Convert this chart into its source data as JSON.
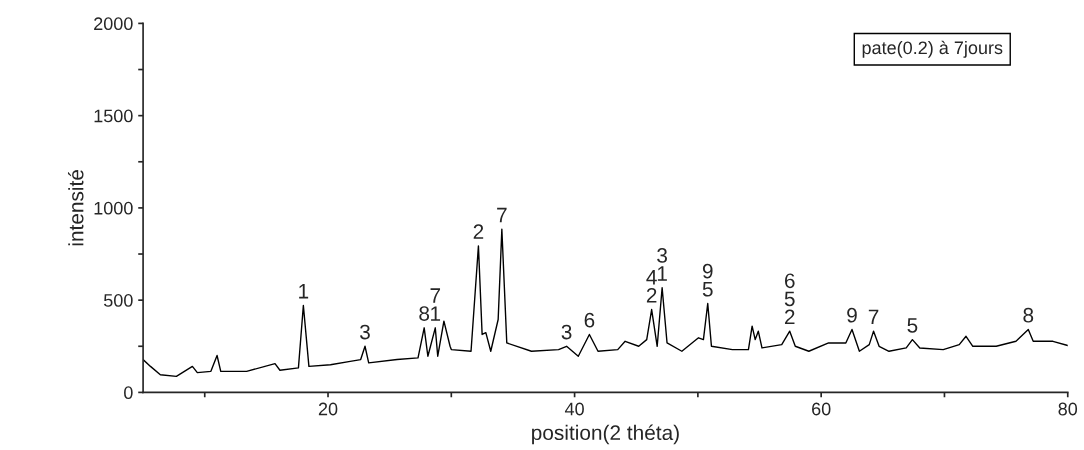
{
  "chart_data": {
    "type": "line",
    "xlabel": "position(2 théta)",
    "ylabel": "intensité",
    "xlim": [
      5,
      80
    ],
    "ylim": [
      0,
      2000
    ],
    "xticks": [
      {
        "value": 10,
        "label": null
      },
      20,
      {
        "value": 30,
        "label": null
      },
      40,
      {
        "value": 50,
        "label": null
      },
      60,
      {
        "value": 70,
        "label": null
      },
      80
    ],
    "yticks": [
      0,
      {
        "value": 250,
        "label": null
      },
      500,
      {
        "value": 750,
        "label": null
      },
      1000,
      {
        "value": 1250,
        "label": null
      },
      1500,
      {
        "value": 1750,
        "label": null
      },
      2000
    ],
    "grid": false,
    "marker": "none",
    "line_style": "solid",
    "series": [
      {
        "color": "#000000",
        "x": [
          5.0,
          5.6,
          6.4,
          7.7,
          9.0,
          9.4,
          10.5,
          11.0,
          11.3,
          13.4,
          15.7,
          16.1,
          17.6,
          18.0,
          18.45,
          20.2,
          21.8,
          22.65,
          23.0,
          23.3,
          25.6,
          27.3,
          27.8,
          28.1,
          28.7,
          28.9,
          29.4,
          29.9,
          30.0,
          31.6,
          32.2,
          32.5,
          32.8,
          33.2,
          33.8,
          34.1,
          34.5,
          36.5,
          38.7,
          39.35,
          40.3,
          41.2,
          41.9,
          43.5,
          44.1,
          45.2,
          45.85,
          46.25,
          46.7,
          47.1,
          47.5,
          48.7,
          50.05,
          50.45,
          50.8,
          51.1,
          52.8,
          54.1,
          54.4,
          54.65,
          54.9,
          55.2,
          56.8,
          57.45,
          57.9,
          59.0,
          60.6,
          62.0,
          62.5,
          63.1,
          63.9,
          64.25,
          64.7,
          65.5,
          66.9,
          67.4,
          68.0,
          69.9,
          71.2,
          71.75,
          72.3,
          74.2,
          75.8,
          76.8,
          77.2,
          78.8,
          80.0
        ],
        "values": [
          178,
          141,
          96,
          87,
          141,
          107,
          114,
          200,
          114,
          114,
          156,
          120,
          133,
          471,
          141,
          150,
          168,
          178,
          250,
          160,
          178,
          187,
          350,
          196,
          350,
          196,
          386,
          250,
          232,
          223,
          794,
          314,
          324,
          223,
          395,
          884,
          268,
          223,
          232,
          250,
          196,
          314,
          223,
          232,
          277,
          250,
          286,
          449,
          250,
          567,
          268,
          223,
          296,
          286,
          482,
          250,
          232,
          232,
          359,
          286,
          332,
          241,
          259,
          332,
          250,
          223,
          268,
          268,
          341,
          223,
          259,
          332,
          250,
          223,
          241,
          286,
          241,
          232,
          259,
          304,
          250,
          250,
          277,
          341,
          277,
          277,
          254
        ]
      }
    ],
    "annotations": [
      {
        "text": "1",
        "x": 18.0,
        "y": 471
      },
      {
        "text": "3",
        "x": 23.0,
        "y": 250
      },
      {
        "text": "8",
        "x": 27.8,
        "y": 350
      },
      {
        "text": "1",
        "x": 28.7,
        "y": 350
      },
      {
        "text": "7",
        "x": 28.7,
        "y": 350
      },
      {
        "text": "2",
        "x": 32.2,
        "y": 794
      },
      {
        "text": "7",
        "x": 34.1,
        "y": 884
      },
      {
        "text": "3",
        "x": 39.35,
        "y": 250
      },
      {
        "text": "6",
        "x": 41.2,
        "y": 314
      },
      {
        "text": "2",
        "x": 46.25,
        "y": 449
      },
      {
        "text": "4",
        "x": 46.25,
        "y": 449
      },
      {
        "text": "1",
        "x": 47.1,
        "y": 567
      },
      {
        "text": "3",
        "x": 47.1,
        "y": 567
      },
      {
        "text": "5",
        "x": 50.8,
        "y": 482
      },
      {
        "text": "9",
        "x": 50.8,
        "y": 482
      },
      {
        "text": "2",
        "x": 57.45,
        "y": 332
      },
      {
        "text": "5",
        "x": 57.45,
        "y": 332
      },
      {
        "text": "6",
        "x": 57.45,
        "y": 332
      },
      {
        "text": "9",
        "x": 62.5,
        "y": 341
      },
      {
        "text": "7",
        "x": 64.25,
        "y": 332
      },
      {
        "text": "5",
        "x": 67.4,
        "y": 286
      },
      {
        "text": "8",
        "x": 76.8,
        "y": 341
      },
      "pate(0.2) à 7jours"
    ]
  }
}
